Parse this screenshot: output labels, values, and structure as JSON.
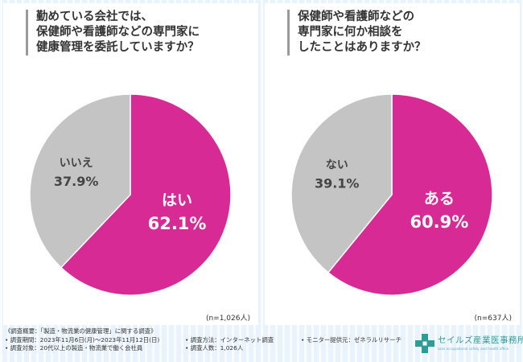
{
  "chart_data": [
    {
      "type": "pie",
      "title_lines": [
        "勤めている会社では、",
        "保健師や看護師などの専門家に",
        "健康管理を委託していますか？"
      ],
      "categories": [
        "はい",
        "いいえ"
      ],
      "values": [
        62.1,
        37.9
      ],
      "value_labels": [
        "62.1%",
        "37.9%"
      ],
      "colors": [
        "#d82a95",
        "#c4c4c4"
      ],
      "n_label": "(n=1,026人)"
    },
    {
      "type": "pie",
      "title_lines": [
        "保健師や看護師などの",
        "専門家に何か相談を",
        "したことはありますか？"
      ],
      "categories": [
        "ある",
        "ない"
      ],
      "values": [
        60.9,
        39.1
      ],
      "value_labels": [
        "60.9%",
        "39.1%"
      ],
      "colors": [
        "#d82a95",
        "#c4c4c4"
      ],
      "n_label": "(n=637人)"
    }
  ],
  "footer": {
    "line1": "《調査概要：「製造・物流業の健康管理」に関する調査》",
    "line2_a": "• 調査期間：2023年11月6日(月)～2023年11月12日(日)",
    "line2_b": "• 調査方法：インターネット調査",
    "line2_c": "• モニター提供元：ゼネラルリサーチ",
    "line3_a": "• 調査対象：20代以上の製造・物流業で働く会社員",
    "line3_b": "• 調査人数：1,026人"
  },
  "logo": {
    "name": "セイルズ産業医事務所",
    "tagline": "sails occupational safety and health office"
  }
}
